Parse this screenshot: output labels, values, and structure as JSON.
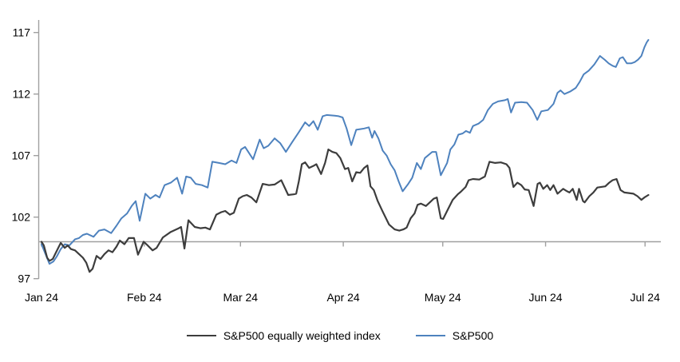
{
  "chart_data": {
    "type": "line",
    "title": "",
    "x_axis": {
      "labels": [
        "Jan 24",
        "Feb 24",
        "Mar 24",
        "Apr 24",
        "May 24",
        "Jun 24",
        "Jul 24"
      ],
      "label_day_offsets": [
        0,
        31,
        60,
        91,
        121,
        152,
        182
      ],
      "unit": "days since 2024-01-01",
      "domain_days": [
        0,
        183
      ]
    },
    "y_axis": {
      "ticks": [
        97,
        102,
        107,
        112,
        117
      ],
      "range": [
        96.3,
        118.0
      ],
      "gridlines": false
    },
    "baseline_value": 100,
    "legend_position": "bottom",
    "series": [
      {
        "name": "S&P500 equally weighted index",
        "color": "#3d3d3d",
        "stroke_width": 2.2,
        "points": [
          [
            0,
            100
          ],
          [
            0.7,
            99.7
          ],
          [
            1.7,
            98.7
          ],
          [
            2.4,
            98.45
          ],
          [
            3.4,
            98.6
          ],
          [
            4.3,
            99.1
          ],
          [
            5.8,
            99.9
          ],
          [
            7,
            99.5
          ],
          [
            7.9,
            99.7
          ],
          [
            8.9,
            99.4
          ],
          [
            10.1,
            99.3
          ],
          [
            11.3,
            99
          ],
          [
            12.5,
            98.7
          ],
          [
            13.5,
            98.3
          ],
          [
            14.5,
            97.55
          ],
          [
            15.4,
            97.8
          ],
          [
            16.6,
            98.85
          ],
          [
            17.8,
            98.6
          ],
          [
            19,
            99
          ],
          [
            20.2,
            99.3
          ],
          [
            21.4,
            99.15
          ],
          [
            22.6,
            99.6
          ],
          [
            23.6,
            100.1
          ],
          [
            25,
            99.8
          ],
          [
            26.3,
            100.3
          ],
          [
            27.9,
            100.3
          ],
          [
            29.1,
            98.95
          ],
          [
            30.8,
            100
          ],
          [
            32,
            99.7
          ],
          [
            33.5,
            99.3
          ],
          [
            34.7,
            99.5
          ],
          [
            36.6,
            100.35
          ],
          [
            39,
            100.8
          ],
          [
            41.4,
            101.1
          ],
          [
            42.1,
            101.2
          ],
          [
            43.1,
            99.45
          ],
          [
            44.3,
            101.75
          ],
          [
            46.2,
            101.2
          ],
          [
            47.9,
            101.1
          ],
          [
            49.4,
            101.15
          ],
          [
            50.8,
            101
          ],
          [
            52.7,
            102.2
          ],
          [
            54.2,
            102.4
          ],
          [
            55.4,
            102.5
          ],
          [
            56.8,
            102.2
          ],
          [
            58,
            102.35
          ],
          [
            59.5,
            103.5
          ],
          [
            60.7,
            103.7
          ],
          [
            61.9,
            103.8
          ],
          [
            63.3,
            103.6
          ],
          [
            64.8,
            103.2
          ],
          [
            66.7,
            104.7
          ],
          [
            68.6,
            104.6
          ],
          [
            70.3,
            104.65
          ],
          [
            72.3,
            105
          ],
          [
            74.4,
            103.8
          ],
          [
            76,
            103.85
          ],
          [
            76.8,
            103.9
          ],
          [
            77.6,
            104.9
          ],
          [
            78.5,
            106.3
          ],
          [
            79.5,
            106.45
          ],
          [
            80.7,
            106
          ],
          [
            81.9,
            106.15
          ],
          [
            82.9,
            106.3
          ],
          [
            84.3,
            105.5
          ],
          [
            85.5,
            106.4
          ],
          [
            86.5,
            107.5
          ],
          [
            87.7,
            107.3
          ],
          [
            88.9,
            107.2
          ],
          [
            90.1,
            106.8
          ],
          [
            91.5,
            105.9
          ],
          [
            92.5,
            106
          ],
          [
            93.7,
            104.9
          ],
          [
            94.9,
            105.65
          ],
          [
            96.1,
            105.6
          ],
          [
            97.3,
            106
          ],
          [
            98.3,
            106.2
          ],
          [
            99.2,
            104.5
          ],
          [
            100.2,
            104.2
          ],
          [
            101.4,
            103.3
          ],
          [
            102.9,
            102.45
          ],
          [
            104.8,
            101.4
          ],
          [
            106.5,
            101
          ],
          [
            107.9,
            100.9
          ],
          [
            109.1,
            101
          ],
          [
            110.1,
            101.15
          ],
          [
            111.3,
            101.9
          ],
          [
            112.5,
            102.3
          ],
          [
            113.4,
            103
          ],
          [
            114.4,
            103.1
          ],
          [
            115.9,
            102.9
          ],
          [
            117.1,
            103.2
          ],
          [
            118.3,
            103.5
          ],
          [
            119.2,
            103.6
          ],
          [
            120.4,
            101.9
          ],
          [
            121.1,
            101.85
          ],
          [
            122.3,
            102.5
          ],
          [
            124,
            103.4
          ],
          [
            125.5,
            103.85
          ],
          [
            126.4,
            104.05
          ],
          [
            127.9,
            104.45
          ],
          [
            128.8,
            105
          ],
          [
            130.1,
            105.1
          ],
          [
            132,
            105.05
          ],
          [
            133.7,
            105.3
          ],
          [
            135.1,
            106.5
          ],
          [
            136.8,
            106.4
          ],
          [
            138.5,
            106.45
          ],
          [
            140.2,
            106.3
          ],
          [
            141.1,
            106
          ],
          [
            142.3,
            104.45
          ],
          [
            143.5,
            104.8
          ],
          [
            144.7,
            104.6
          ],
          [
            145.7,
            104.25
          ],
          [
            146.9,
            104.2
          ],
          [
            148.4,
            102.9
          ],
          [
            149.6,
            104.7
          ],
          [
            150.3,
            104.8
          ],
          [
            151.3,
            104.3
          ],
          [
            152.5,
            104.6
          ],
          [
            153.4,
            104.2
          ],
          [
            154.4,
            104.6
          ],
          [
            155.6,
            103.9
          ],
          [
            157.3,
            104.3
          ],
          [
            158.5,
            104.1
          ],
          [
            159.2,
            104
          ],
          [
            160.2,
            104.3
          ],
          [
            161.4,
            103.4
          ],
          [
            162.1,
            104.3
          ],
          [
            163.3,
            103.3
          ],
          [
            163.8,
            103.2
          ],
          [
            165.2,
            103.7
          ],
          [
            166.4,
            104
          ],
          [
            167.6,
            104.4
          ],
          [
            170,
            104.5
          ],
          [
            171.2,
            104.8
          ],
          [
            172.2,
            105
          ],
          [
            173.4,
            105.1
          ],
          [
            174.6,
            104.2
          ],
          [
            175.8,
            104
          ],
          [
            178.5,
            103.9
          ],
          [
            179.7,
            103.7
          ],
          [
            180.9,
            103.4
          ],
          [
            181.8,
            103.6
          ],
          [
            183,
            103.8
          ]
        ]
      },
      {
        "name": "S&P500",
        "color": "#4e82be",
        "stroke_width": 2,
        "points": [
          [
            0,
            99.8
          ],
          [
            1.2,
            99
          ],
          [
            2.4,
            98.2
          ],
          [
            3.6,
            98.4
          ],
          [
            4.6,
            98.8
          ],
          [
            5.8,
            99.4
          ],
          [
            7,
            99.8
          ],
          [
            8.4,
            99.7
          ],
          [
            10.1,
            100.2
          ],
          [
            11.3,
            100.3
          ],
          [
            12.5,
            100.55
          ],
          [
            13.7,
            100.65
          ],
          [
            15.7,
            100.4
          ],
          [
            17.3,
            100.9
          ],
          [
            19,
            101
          ],
          [
            21,
            100.7
          ],
          [
            22.6,
            101.3
          ],
          [
            24.1,
            101.9
          ],
          [
            25.8,
            102.3
          ],
          [
            27.2,
            102.9
          ],
          [
            28.4,
            103.3
          ],
          [
            29.6,
            101.7
          ],
          [
            31.3,
            103.9
          ],
          [
            32.8,
            103.5
          ],
          [
            34.4,
            103.8
          ],
          [
            35.6,
            103.6
          ],
          [
            37.1,
            104.6
          ],
          [
            39,
            104.8
          ],
          [
            40.9,
            105.2
          ],
          [
            42.4,
            103.9
          ],
          [
            43.6,
            105.3
          ],
          [
            45,
            105.2
          ],
          [
            46.5,
            104.7
          ],
          [
            48.4,
            104.6
          ],
          [
            50.1,
            104.4
          ],
          [
            51.5,
            106.5
          ],
          [
            53.5,
            106.4
          ],
          [
            55.4,
            106.3
          ],
          [
            57.3,
            106.6
          ],
          [
            58.8,
            106.4
          ],
          [
            60.2,
            107.5
          ],
          [
            61.4,
            107.7
          ],
          [
            63.8,
            106.7
          ],
          [
            65.8,
            108.3
          ],
          [
            67,
            107.6
          ],
          [
            68.4,
            107.8
          ],
          [
            70.3,
            108.4
          ],
          [
            72,
            108
          ],
          [
            73.7,
            107.3
          ],
          [
            75.6,
            108.1
          ],
          [
            77.6,
            108.9
          ],
          [
            79.5,
            109.7
          ],
          [
            80.7,
            109.4
          ],
          [
            82,
            109.8
          ],
          [
            83.3,
            109.1
          ],
          [
            84.8,
            110.2
          ],
          [
            86,
            110.3
          ],
          [
            88.4,
            110.25
          ],
          [
            89.6,
            110.2
          ],
          [
            90.8,
            110.1
          ],
          [
            92,
            109.2
          ],
          [
            93.4,
            107.85
          ],
          [
            94.9,
            109.1
          ],
          [
            96.1,
            109.15
          ],
          [
            97.3,
            109.2
          ],
          [
            98.7,
            109.3
          ],
          [
            99.7,
            108.45
          ],
          [
            100.4,
            109
          ],
          [
            101.6,
            108.4
          ],
          [
            102.9,
            107.4
          ],
          [
            104.1,
            107
          ],
          [
            105.3,
            106.3
          ],
          [
            106.5,
            105.8
          ],
          [
            107.7,
            104.9
          ],
          [
            108.9,
            104.1
          ],
          [
            110.6,
            104.7
          ],
          [
            111.8,
            105.2
          ],
          [
            113.2,
            106.4
          ],
          [
            114.4,
            105.9
          ],
          [
            115.6,
            106.8
          ],
          [
            117.8,
            107.3
          ],
          [
            119,
            107.3
          ],
          [
            120.4,
            105.4
          ],
          [
            122.3,
            106.4
          ],
          [
            123.3,
            107.5
          ],
          [
            124.5,
            107.9
          ],
          [
            125.7,
            108.7
          ],
          [
            127,
            108.8
          ],
          [
            128,
            109
          ],
          [
            129.2,
            108.85
          ],
          [
            130.1,
            109.4
          ],
          [
            131.8,
            109.6
          ],
          [
            133.2,
            109.9
          ],
          [
            134.6,
            110.7
          ],
          [
            136.1,
            111.2
          ],
          [
            137.7,
            111.4
          ],
          [
            139.7,
            111.5
          ],
          [
            140.6,
            111.6
          ],
          [
            141.6,
            110.5
          ],
          [
            142.8,
            111.3
          ],
          [
            144.7,
            111.35
          ],
          [
            146.4,
            111.3
          ],
          [
            148.1,
            110.7
          ],
          [
            149.5,
            109.9
          ],
          [
            150.7,
            110.6
          ],
          [
            152.7,
            110.7
          ],
          [
            154.4,
            111.2
          ],
          [
            155.6,
            112.1
          ],
          [
            156.5,
            112.3
          ],
          [
            157.7,
            112
          ],
          [
            159.4,
            112.2
          ],
          [
            161.1,
            112.5
          ],
          [
            162.3,
            113
          ],
          [
            163.5,
            113.6
          ],
          [
            165,
            113.9
          ],
          [
            166.7,
            114.4
          ],
          [
            168.4,
            115.1
          ],
          [
            169.8,
            114.8
          ],
          [
            171,
            114.5
          ],
          [
            172.2,
            114.3
          ],
          [
            173.2,
            114.2
          ],
          [
            174.4,
            114.9
          ],
          [
            175.3,
            115
          ],
          [
            176.5,
            114.5
          ],
          [
            177.9,
            114.5
          ],
          [
            178.9,
            114.6
          ],
          [
            179.9,
            114.8
          ],
          [
            180.9,
            115.1
          ],
          [
            181.8,
            115.8
          ],
          [
            182.5,
            116.2
          ],
          [
            183,
            116.4
          ]
        ]
      }
    ]
  },
  "colors": {
    "background": "#ffffff",
    "axis": "#a0a0a0",
    "text": "#000000",
    "equal_weight_line": "#3d3d3d",
    "sp500_line": "#4e82be"
  }
}
